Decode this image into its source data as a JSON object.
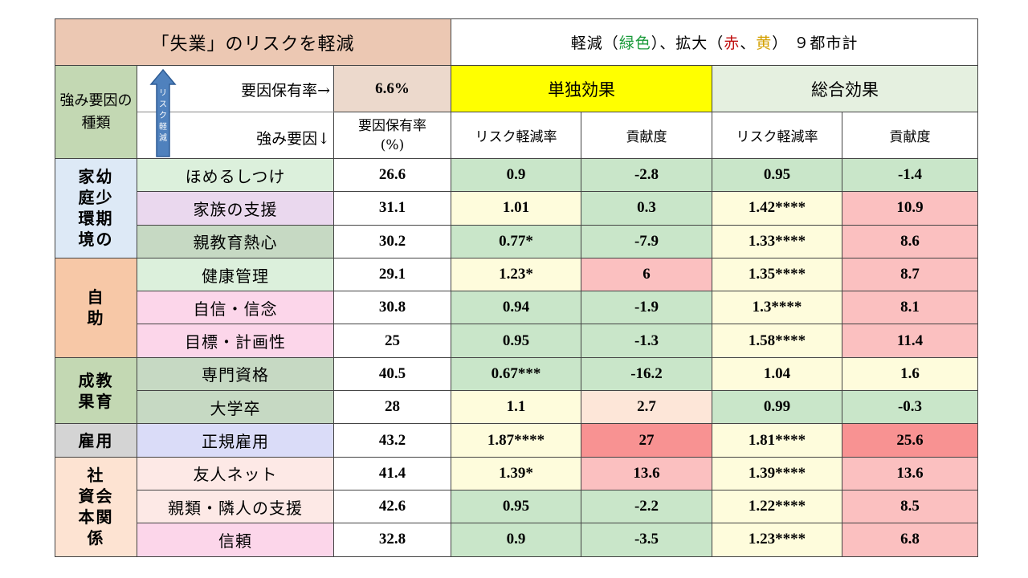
{
  "title": "「失業」のリスクを軽減",
  "legend": {
    "prefix": "軽減（",
    "green": "緑色",
    "mid": "）、拡大（",
    "red": "赤",
    "sep": "、",
    "yellow": "黄",
    "suffix": "） ９都市計"
  },
  "header": {
    "category_label": "強み要因の種類",
    "arrow_text": "リスク軽減",
    "possession_label": "要因保有率→",
    "possession_value": "6.6%",
    "factor_label": "強み要因↓",
    "rate_label": "要因保有率(%)",
    "single_effect": "単独効果",
    "total_effect": "総合効果",
    "risk_reduction": "リスク軽減率",
    "contribution": "貢献度"
  },
  "colors": {
    "green": "#c9e6c9",
    "lightyellow": "#fefcdc",
    "pink": "#fbc0c0",
    "darkpink": "#f89292",
    "peach": "#fde6d8",
    "yellow": "#ffff00"
  },
  "groups": [
    {
      "label": "家幼\n庭少\n環期\n境の",
      "bg": "#dde9f6",
      "span": 3
    },
    {
      "label": "自\n助",
      "bg": "#f7c8a7",
      "span": 3
    },
    {
      "label": "成教\n果育",
      "bg": "#c3d8b3",
      "span": 2
    },
    {
      "label": "雇用",
      "bg": "#d4d4d4",
      "span": 1
    },
    {
      "label": "社\n資会\n本関\n係",
      "bg": "#fde3d2",
      "span": 3
    }
  ],
  "rows": [
    {
      "factor": "ほめるしつけ",
      "fbg": "#dcf0dc",
      "rate": "26.6",
      "s_rate": "0.9",
      "s_rate_c": "green",
      "s_con": "-2.8",
      "s_con_c": "green",
      "t_rate": "0.95",
      "t_rate_c": "green",
      "t_con": "-1.4",
      "t_con_c": "green"
    },
    {
      "factor": "家族の支援",
      "fbg": "#ead8ee",
      "rate": "31.1",
      "s_rate": "1.01",
      "s_rate_c": "lightyellow",
      "s_con": "0.3",
      "s_con_c": "green",
      "t_rate": "1.42****",
      "t_rate_c": "lightyellow",
      "t_con": "10.9",
      "t_con_c": "pink"
    },
    {
      "factor": "親教育熱心",
      "fbg": "#c6d9c3",
      "rate": "30.2",
      "s_rate": "0.77*",
      "s_rate_c": "green",
      "s_con": "-7.9",
      "s_con_c": "green",
      "t_rate": "1.33****",
      "t_rate_c": "lightyellow",
      "t_con": "8.6",
      "t_con_c": "pink"
    },
    {
      "factor": "健康管理",
      "fbg": "#dcf0dc",
      "rate": "29.1",
      "s_rate": "1.23*",
      "s_rate_c": "lightyellow",
      "s_con": "6",
      "s_con_c": "pink",
      "t_rate": "1.35****",
      "t_rate_c": "lightyellow",
      "t_con": "8.7",
      "t_con_c": "pink"
    },
    {
      "factor": "自信・信念",
      "fbg": "#fcd6ea",
      "rate": "30.8",
      "s_rate": "0.94",
      "s_rate_c": "green",
      "s_con": "-1.9",
      "s_con_c": "green",
      "t_rate": "1.3****",
      "t_rate_c": "lightyellow",
      "t_con": "8.1",
      "t_con_c": "pink"
    },
    {
      "factor": "目標・計画性",
      "fbg": "#fcd6ea",
      "rate": "25",
      "s_rate": "0.95",
      "s_rate_c": "green",
      "s_con": "-1.3",
      "s_con_c": "green",
      "t_rate": "1.58****",
      "t_rate_c": "lightyellow",
      "t_con": "11.4",
      "t_con_c": "pink"
    },
    {
      "factor": "専門資格",
      "fbg": "#c6d9c3",
      "rate": "40.5",
      "s_rate": "0.67***",
      "s_rate_c": "green",
      "s_con": "-16.2",
      "s_con_c": "green",
      "t_rate": "1.04",
      "t_rate_c": "lightyellow",
      "t_con": "1.6",
      "t_con_c": "lightyellow"
    },
    {
      "factor": "大学卒",
      "fbg": "#c6d9c3",
      "rate": "28",
      "s_rate": "1.1",
      "s_rate_c": "lightyellow",
      "s_con": "2.7",
      "s_con_c": "peach",
      "t_rate": "0.99",
      "t_rate_c": "green",
      "t_con": "-0.3",
      "t_con_c": "green"
    },
    {
      "factor": "正規雇用",
      "fbg": "#dadcf8",
      "rate": "43.2",
      "s_rate": "1.87****",
      "s_rate_c": "lightyellow",
      "s_con": "27",
      "s_con_c": "darkpink",
      "t_rate": "1.81****",
      "t_rate_c": "lightyellow",
      "t_con": "25.6",
      "t_con_c": "darkpink"
    },
    {
      "factor": "友人ネット",
      "fbg": "#fde9e6",
      "rate": "41.4",
      "s_rate": "1.39*",
      "s_rate_c": "lightyellow",
      "s_con": "13.6",
      "s_con_c": "pink",
      "t_rate": "1.39****",
      "t_rate_c": "lightyellow",
      "t_con": "13.6",
      "t_con_c": "pink"
    },
    {
      "factor": "親類・隣人の支援",
      "fbg": "#fde9e6",
      "rate": "42.6",
      "s_rate": "0.95",
      "s_rate_c": "green",
      "s_con": "-2.2",
      "s_con_c": "green",
      "t_rate": "1.22****",
      "t_rate_c": "lightyellow",
      "t_con": "8.5",
      "t_con_c": "pink"
    },
    {
      "factor": "信頼",
      "fbg": "#fcd6ea",
      "rate": "32.8",
      "s_rate": "0.9",
      "s_rate_c": "green",
      "s_con": "-3.5",
      "s_con_c": "green",
      "t_rate": "1.23****",
      "t_rate_c": "lightyellow",
      "t_con": "6.8",
      "t_con_c": "pink"
    }
  ]
}
